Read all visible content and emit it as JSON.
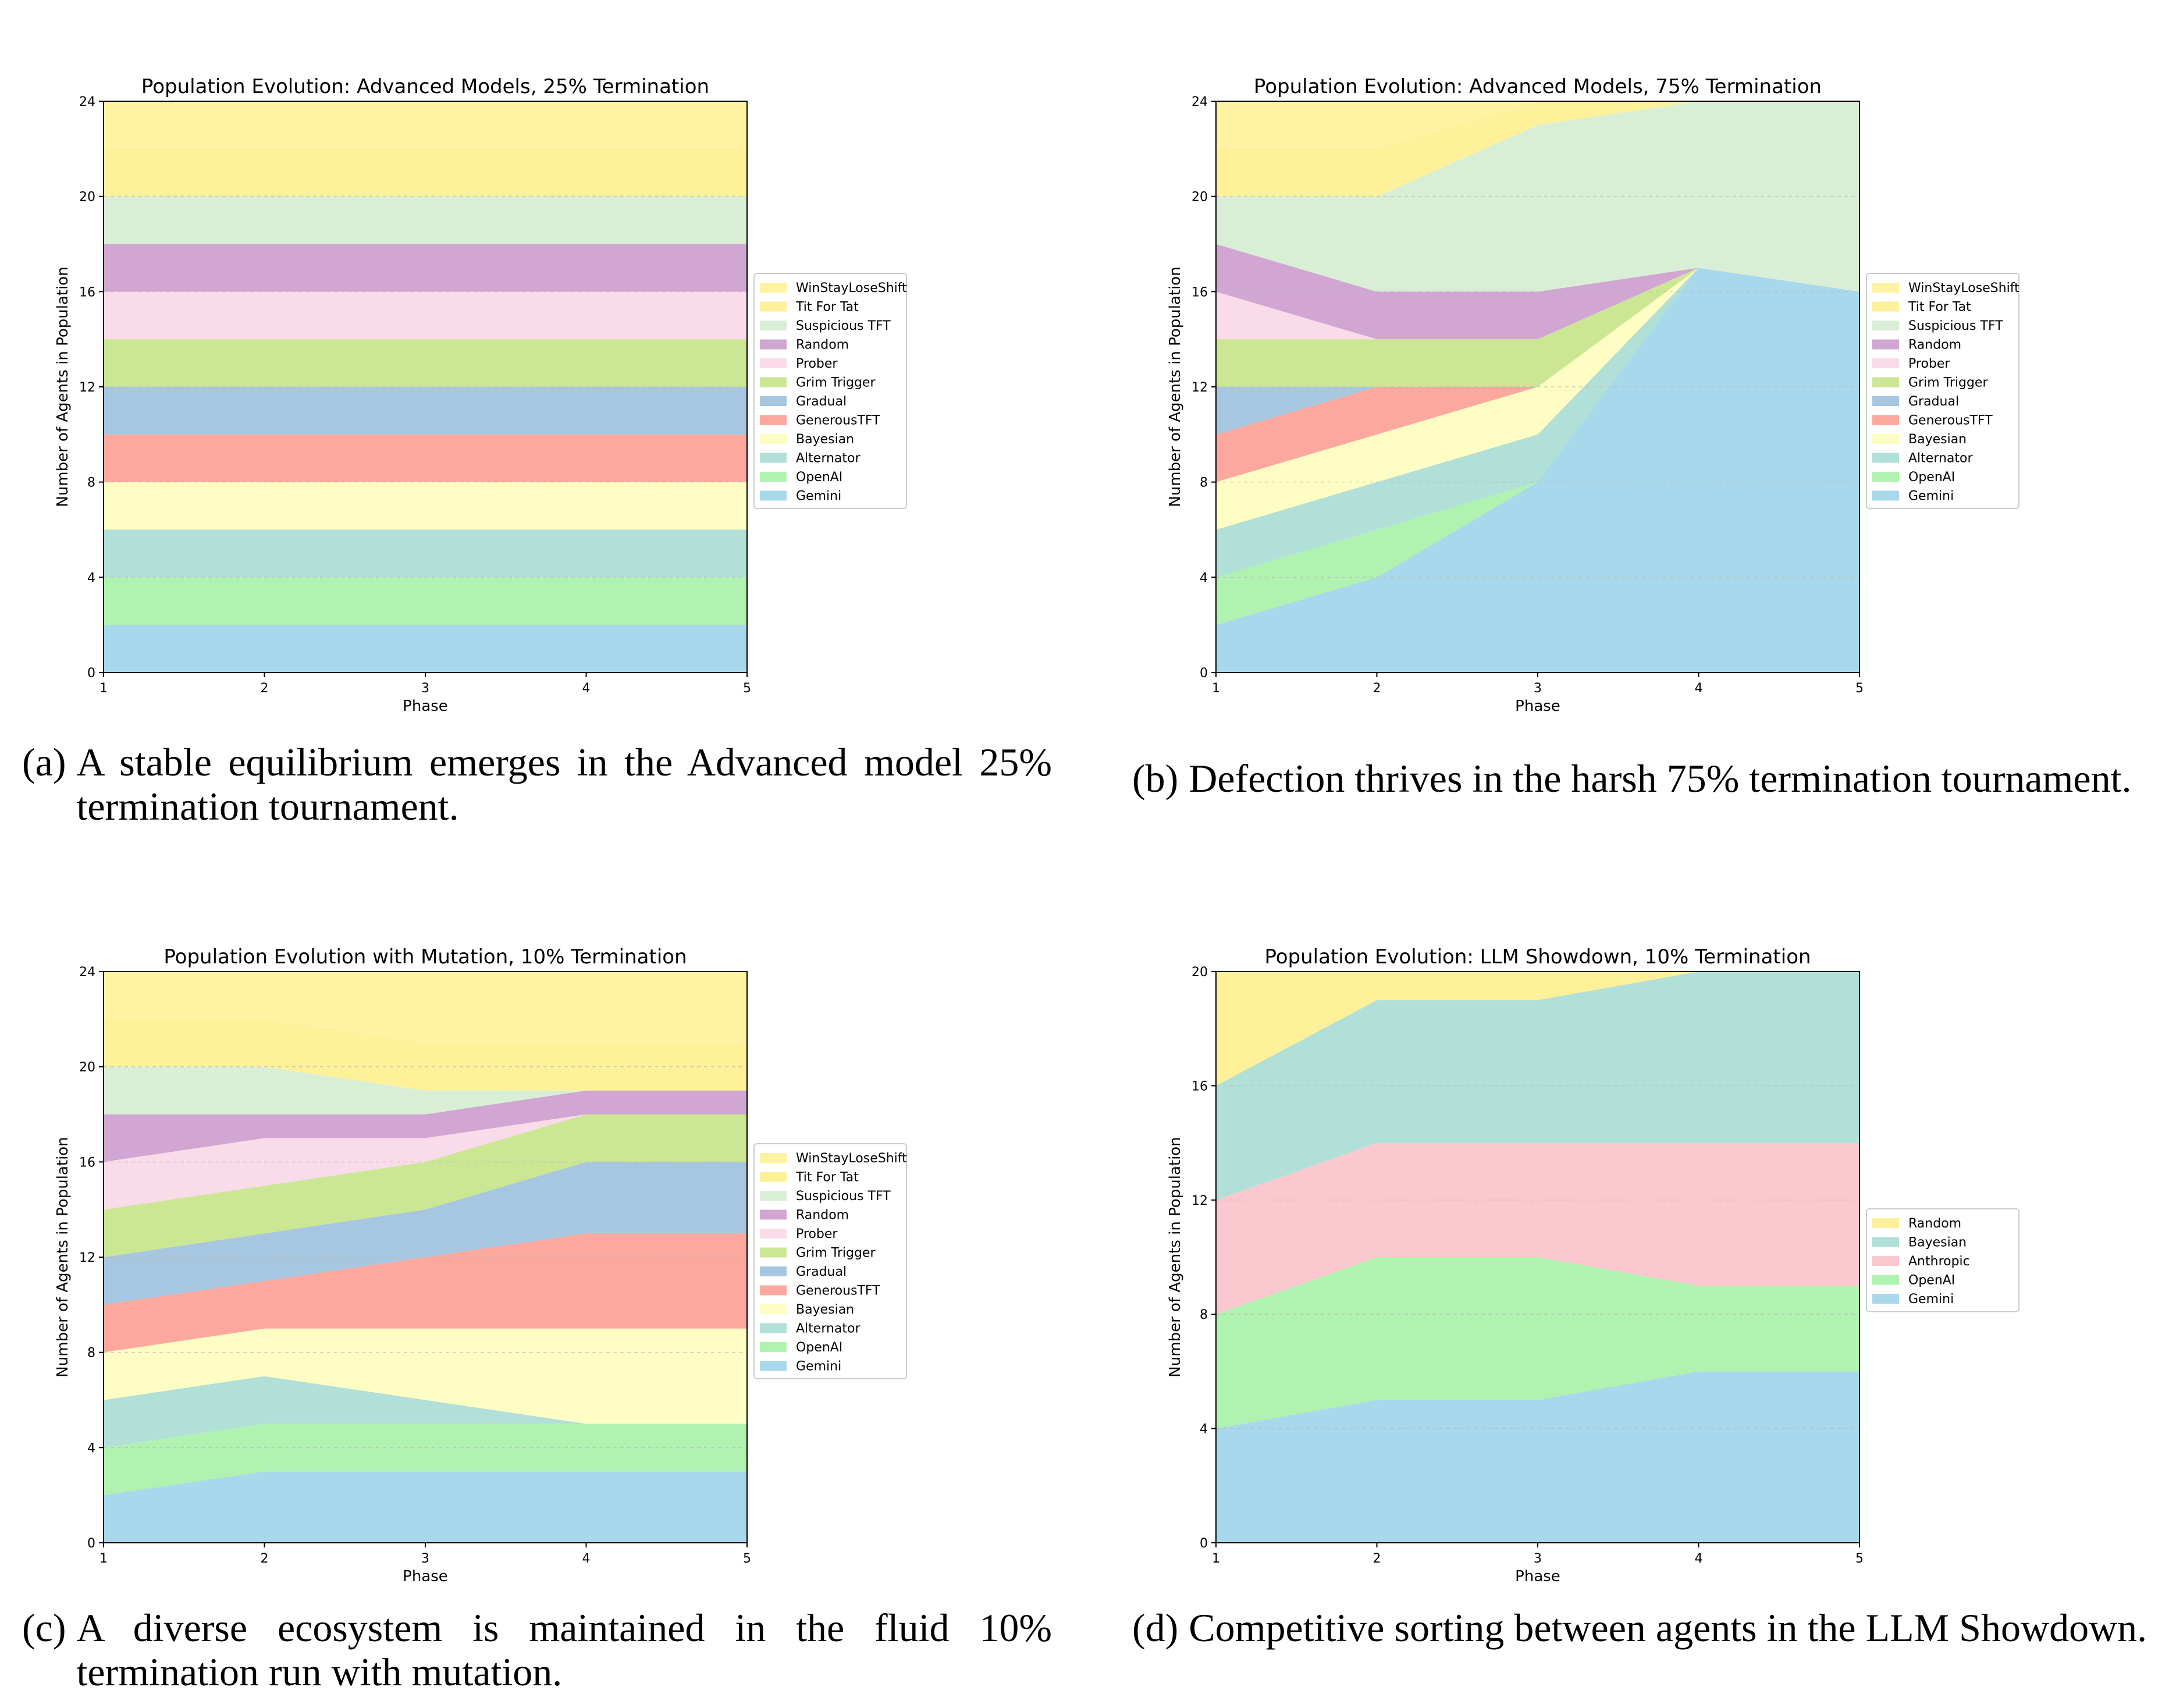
{
  "chart_data": [
    {
      "id": "a",
      "type": "area",
      "title": "Population Evolution: Advanced Models, 25% Termination",
      "xlabel": "Phase",
      "ylabel": "Number of Agents in Population",
      "x": [
        1,
        2,
        3,
        4,
        5
      ],
      "xlim": [
        1,
        5
      ],
      "ylim": [
        0,
        24
      ],
      "yticks": [
        0,
        4,
        8,
        12,
        16,
        20,
        24
      ],
      "grid": true,
      "legend_position": "center-right outside",
      "legend_order": [
        "WinStayLoseShift",
        "Tit For Tat",
        "Suspicious TFT",
        "Random",
        "Prober",
        "Grim Trigger",
        "Gradual",
        "GenerousTFT",
        "Bayesian",
        "Alternator",
        "OpenAI",
        "Gemini"
      ],
      "series": [
        {
          "name": "Gemini",
          "color": "#a8d8ec",
          "values": [
            2,
            2,
            2,
            2,
            2
          ]
        },
        {
          "name": "OpenAI",
          "color": "#b0f2b0",
          "values": [
            2,
            2,
            2,
            2,
            2
          ]
        },
        {
          "name": "Alternator",
          "color": "#b0e0d8",
          "values": [
            2,
            2,
            2,
            2,
            2
          ]
        },
        {
          "name": "Bayesian",
          "color": "#fefec4",
          "values": [
            2,
            2,
            2,
            2,
            2
          ]
        },
        {
          "name": "GenerousTFT",
          "color": "#fca89e",
          "values": [
            2,
            2,
            2,
            2,
            2
          ]
        },
        {
          "name": "Gradual",
          "color": "#a7c7e0",
          "values": [
            2,
            2,
            2,
            2,
            2
          ]
        },
        {
          "name": "Grim Trigger",
          "color": "#cce794",
          "values": [
            2,
            2,
            2,
            2,
            2
          ]
        },
        {
          "name": "Prober",
          "color": "#fadbe9",
          "values": [
            2,
            2,
            2,
            2,
            2
          ]
        },
        {
          "name": "Random",
          "color": "#d1a6d2",
          "values": [
            2,
            2,
            2,
            2,
            2
          ]
        },
        {
          "name": "Suspicious TFT",
          "color": "#d9efd5",
          "values": [
            2,
            2,
            2,
            2,
            2
          ]
        },
        {
          "name": "Tit For Tat",
          "color": "#fff09a",
          "values": [
            2,
            2,
            2,
            2,
            2
          ]
        },
        {
          "name": "WinStayLoseShift",
          "color": "#fff2a0",
          "values": [
            2,
            2,
            2,
            2,
            2
          ]
        }
      ]
    },
    {
      "id": "b",
      "type": "area",
      "title": "Population Evolution: Advanced Models, 75% Termination",
      "xlabel": "Phase",
      "ylabel": "Number of Agents in Population",
      "x": [
        1,
        2,
        3,
        4,
        5
      ],
      "xlim": [
        1,
        5
      ],
      "ylim": [
        0,
        24
      ],
      "yticks": [
        0,
        4,
        8,
        12,
        16,
        20,
        24
      ],
      "grid": true,
      "legend_position": "center-right outside",
      "legend_order": [
        "WinStayLoseShift",
        "Tit For Tat",
        "Suspicious TFT",
        "Random",
        "Prober",
        "Grim Trigger",
        "Gradual",
        "GenerousTFT",
        "Bayesian",
        "Alternator",
        "OpenAI",
        "Gemini"
      ],
      "series": [
        {
          "name": "Gemini",
          "color": "#a8d8ec",
          "values": [
            2,
            4,
            8,
            17,
            16
          ]
        },
        {
          "name": "OpenAI",
          "color": "#b0f2b0",
          "values": [
            2,
            2,
            0,
            0,
            0
          ]
        },
        {
          "name": "Alternator",
          "color": "#b0e0d8",
          "values": [
            2,
            2,
            2,
            0,
            0
          ]
        },
        {
          "name": "Bayesian",
          "color": "#fefec4",
          "values": [
            2,
            2,
            2,
            0,
            0
          ]
        },
        {
          "name": "GenerousTFT",
          "color": "#fca89e",
          "values": [
            2,
            2,
            0,
            0,
            0
          ]
        },
        {
          "name": "Gradual",
          "color": "#a7c7e0",
          "values": [
            2,
            0,
            0,
            0,
            0
          ]
        },
        {
          "name": "Grim Trigger",
          "color": "#cce794",
          "values": [
            2,
            2,
            2,
            0,
            0
          ]
        },
        {
          "name": "Prober",
          "color": "#fadbe9",
          "values": [
            2,
            0,
            0,
            0,
            0
          ]
        },
        {
          "name": "Random",
          "color": "#d1a6d2",
          "values": [
            2,
            2,
            2,
            0,
            0
          ]
        },
        {
          "name": "Suspicious TFT",
          "color": "#d9efd5",
          "values": [
            2,
            4,
            7,
            7,
            8
          ]
        },
        {
          "name": "Tit For Tat",
          "color": "#fff09a",
          "values": [
            2,
            2,
            1,
            0,
            0
          ]
        },
        {
          "name": "WinStayLoseShift",
          "color": "#fff2a0",
          "values": [
            2,
            2,
            0,
            0,
            0
          ]
        }
      ]
    },
    {
      "id": "c",
      "type": "area",
      "title": "Population Evolution with Mutation, 10% Termination",
      "xlabel": "Phase",
      "ylabel": "Number of Agents in Population",
      "x": [
        1,
        2,
        3,
        4,
        5
      ],
      "xlim": [
        1,
        5
      ],
      "ylim": [
        0,
        24
      ],
      "yticks": [
        0,
        4,
        8,
        12,
        16,
        20,
        24
      ],
      "grid": true,
      "legend_position": "center-right outside",
      "legend_order": [
        "WinStayLoseShift",
        "Tit For Tat",
        "Suspicious TFT",
        "Random",
        "Prober",
        "Grim Trigger",
        "Gradual",
        "GenerousTFT",
        "Bayesian",
        "Alternator",
        "OpenAI",
        "Gemini"
      ],
      "series": [
        {
          "name": "Gemini",
          "color": "#a8d8ec",
          "values": [
            2,
            3,
            3,
            3,
            3
          ]
        },
        {
          "name": "OpenAI",
          "color": "#b0f2b0",
          "values": [
            2,
            2,
            2,
            2,
            2
          ]
        },
        {
          "name": "Alternator",
          "color": "#b0e0d8",
          "values": [
            2,
            2,
            1,
            0,
            0
          ]
        },
        {
          "name": "Bayesian",
          "color": "#fefec4",
          "values": [
            2,
            2,
            3,
            4,
            4
          ]
        },
        {
          "name": "GenerousTFT",
          "color": "#fca89e",
          "values": [
            2,
            2,
            3,
            4,
            4
          ]
        },
        {
          "name": "Gradual",
          "color": "#a7c7e0",
          "values": [
            2,
            2,
            2,
            3,
            3
          ]
        },
        {
          "name": "Grim Trigger",
          "color": "#cce794",
          "values": [
            2,
            2,
            2,
            2,
            2
          ]
        },
        {
          "name": "Prober",
          "color": "#fadbe9",
          "values": [
            2,
            2,
            1,
            0,
            0
          ]
        },
        {
          "name": "Random",
          "color": "#d1a6d2",
          "values": [
            2,
            1,
            1,
            1,
            1
          ]
        },
        {
          "name": "Suspicious TFT",
          "color": "#d9efd5",
          "values": [
            2,
            2,
            1,
            0,
            0
          ]
        },
        {
          "name": "Tit For Tat",
          "color": "#fff09a",
          "values": [
            2,
            2,
            2,
            2,
            2
          ]
        },
        {
          "name": "WinStayLoseShift",
          "color": "#fff2a0",
          "values": [
            2,
            2,
            3,
            3,
            3
          ]
        }
      ]
    },
    {
      "id": "d",
      "type": "area",
      "title": "Population Evolution: LLM Showdown, 10% Termination",
      "xlabel": "Phase",
      "ylabel": "Number of Agents in Population",
      "x": [
        1,
        2,
        3,
        4,
        5
      ],
      "xlim": [
        1,
        5
      ],
      "ylim": [
        0,
        20
      ],
      "yticks": [
        0,
        4,
        8,
        12,
        16,
        20
      ],
      "grid": true,
      "legend_position": "center-right outside",
      "legend_order": [
        "Random",
        "Bayesian",
        "Anthropic",
        "OpenAI",
        "Gemini"
      ],
      "series": [
        {
          "name": "Gemini",
          "color": "#a8d8ec",
          "values": [
            4,
            5,
            5,
            6,
            6
          ]
        },
        {
          "name": "OpenAI",
          "color": "#b0f2b0",
          "values": [
            4,
            5,
            5,
            3,
            3
          ]
        },
        {
          "name": "Anthropic",
          "color": "#fcc8d0",
          "values": [
            4,
            4,
            4,
            5,
            5
          ]
        },
        {
          "name": "Bayesian",
          "color": "#b0e0d8",
          "values": [
            4,
            5,
            5,
            6,
            6
          ]
        },
        {
          "name": "Random",
          "color": "#fff09a",
          "values": [
            4,
            1,
            1,
            0,
            0
          ]
        }
      ]
    }
  ],
  "captions": {
    "a": {
      "letter": "(a)",
      "text": "A stable equilibrium emerges in the Advanced model 25% termination tournament."
    },
    "b": {
      "letter": "(b)",
      "text": "Defection thrives in the harsh 75% termination tournament."
    },
    "c": {
      "letter": "(c)",
      "text": "A diverse ecosystem is maintained in the fluid 10% termination run with mutation."
    },
    "d": {
      "letter": "(d)",
      "text": "Competitive sorting between agents in the LLM Showdown."
    }
  }
}
